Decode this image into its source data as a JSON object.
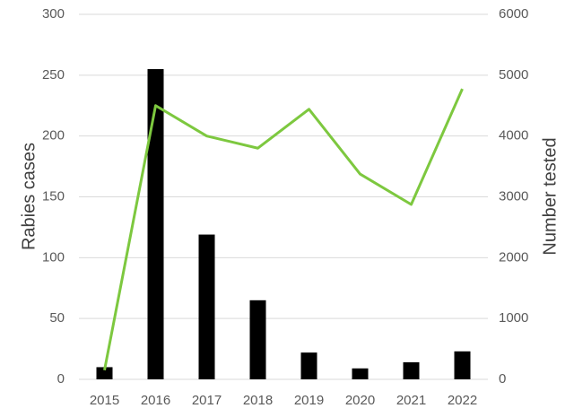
{
  "chart_data": {
    "type": "combo",
    "y_label": "Rabies cases",
    "y2_label": "Number tested",
    "categories": [
      "2015",
      "2016",
      "2017",
      "2018",
      "2019",
      "2020",
      "2021",
      "2022"
    ],
    "series": [
      {
        "name": "Rabies cases",
        "type": "bar",
        "color": "#000000",
        "values": [
          10,
          255,
          119,
          65,
          22,
          9,
          14,
          23
        ]
      },
      {
        "name": "Number tested",
        "type": "line",
        "axis": "y2",
        "color": "#7dc83f",
        "values": [
          150,
          4500,
          4000,
          3800,
          4440,
          3375,
          2875,
          4775
        ]
      }
    ],
    "ylim": [
      0,
      300
    ],
    "yticks": [
      0,
      50,
      100,
      150,
      200,
      250,
      300
    ],
    "y2lim": [
      0,
      6000
    ],
    "y2ticks": [
      0,
      1000,
      2000,
      3000,
      4000,
      5000,
      6000
    ],
    "grid": true
  }
}
